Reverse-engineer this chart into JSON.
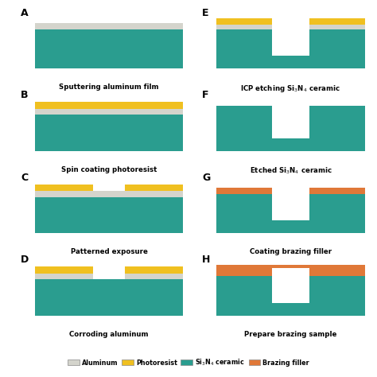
{
  "colors": {
    "teal": "#2a9d8f",
    "aluminum": "#d4d4cc",
    "photoresist": "#f0c020",
    "brazing": "#e07838",
    "white": "#ffffff",
    "background": "#ffffff"
  },
  "labels": {
    "A": "Sputtering aluminum film",
    "B": "Spin coating photoresist",
    "C": "Patterned exposure",
    "D": "Corroding aluminum",
    "E": "ICP etching Si$_3$N$_4$ ceramic",
    "F": "Etched Si$_3$N$_4$ ceramic",
    "G": "Coating brazing filler",
    "H": "Prepare brazing sample"
  },
  "legend": [
    {
      "label": "Aluminum",
      "color": "#d4d4cc"
    },
    {
      "label": "Photoresist",
      "color": "#f0c020"
    },
    {
      "label": "Si$_3$N$_4$ ceramic",
      "color": "#2a9d8f"
    },
    {
      "label": "Brazing filler",
      "color": "#e07838"
    }
  ]
}
